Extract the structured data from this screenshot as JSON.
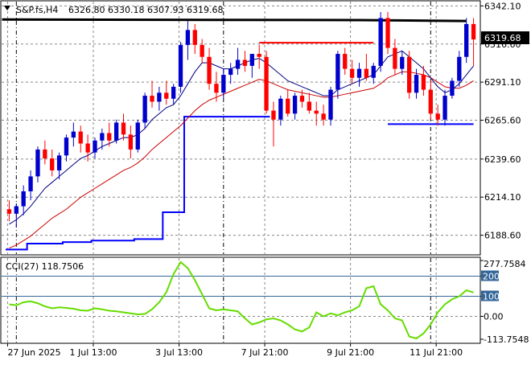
{
  "header": {
    "symbol": "S&P.fs,H4",
    "ohlc": "6326.80 6330.18 6307.93 6319.68"
  },
  "price_panel": {
    "current_price_label": "6319.68",
    "y_ticks": [
      "6342.10",
      "6316.60",
      "6291.10",
      "6265.60",
      "6239.60",
      "6214.10",
      "6188.60"
    ]
  },
  "indicator_panel": {
    "label": "CCI(27) 118.7506",
    "y_ticks": [
      "277.7584",
      "200",
      "100",
      "0.00",
      "-113.7548"
    ]
  },
  "x_axis": {
    "labels": [
      "27 Jun 2025",
      "1 Jul 13:00",
      "3 Jul 13:00",
      "7 Jul 21:00",
      "9 Jul 21:00",
      "11 Jul 21:00"
    ]
  },
  "colors": {
    "bull": "#0000cc",
    "bear": "#ff0000",
    "ma_fast": "#000080",
    "ma_slow": "#cc0000",
    "ma_long": "#000000",
    "stop_line": "#0000ff",
    "cci_line": "#66dd00",
    "cci_level": "#336699",
    "grid": "#888888",
    "current_tag_bg": "#000000"
  },
  "chart_data": [
    {
      "type": "candlestick",
      "title": "S&P.fs,H4",
      "ylim": [
        6176,
        6345
      ],
      "current_price": 6319.68,
      "candles": [
        [
          6206,
          6212,
          6198,
          6203
        ],
        [
          6203,
          6210,
          6194,
          6208
        ],
        [
          6208,
          6222,
          6202,
          6218
        ],
        [
          6218,
          6232,
          6212,
          6228
        ],
        [
          6228,
          6248,
          6224,
          6246
        ],
        [
          6246,
          6252,
          6236,
          6240
        ],
        [
          6240,
          6246,
          6228,
          6232
        ],
        [
          6232,
          6244,
          6226,
          6242
        ],
        [
          6242,
          6256,
          6238,
          6254
        ],
        [
          6254,
          6264,
          6248,
          6258
        ],
        [
          6258,
          6262,
          6244,
          6250
        ],
        [
          6250,
          6256,
          6238,
          6244
        ],
        [
          6244,
          6254,
          6240,
          6252
        ],
        [
          6252,
          6260,
          6246,
          6257
        ],
        [
          6257,
          6264,
          6248,
          6252
        ],
        [
          6252,
          6266,
          6250,
          6264
        ],
        [
          6264,
          6270,
          6252,
          6256
        ],
        [
          6256,
          6262,
          6240,
          6246
        ],
        [
          6246,
          6266,
          6244,
          6264
        ],
        [
          6264,
          6284,
          6260,
          6282
        ],
        [
          6282,
          6292,
          6274,
          6278
        ],
        [
          6278,
          6288,
          6272,
          6284
        ],
        [
          6284,
          6292,
          6276,
          6280
        ],
        [
          6280,
          6290,
          6276,
          6288
        ],
        [
          6288,
          6318,
          6284,
          6316
        ],
        [
          6316,
          6332,
          6306,
          6326
        ],
        [
          6326,
          6330,
          6310,
          6316
        ],
        [
          6316,
          6320,
          6304,
          6308
        ],
        [
          6308,
          6314,
          6286,
          6290
        ],
        [
          6290,
          6298,
          6278,
          6284
        ],
        [
          6284,
          6300,
          6280,
          6296
        ],
        [
          6296,
          6304,
          6290,
          6300
        ],
        [
          6300,
          6314,
          6296,
          6306
        ],
        [
          6306,
          6312,
          6298,
          6302
        ],
        [
          6302,
          6310,
          6294,
          6310
        ],
        [
          6310,
          6316,
          6300,
          6308
        ],
        [
          6308,
          6312,
          6270,
          6272
        ],
        [
          6272,
          6278,
          6248,
          6266
        ],
        [
          6266,
          6282,
          6262,
          6280
        ],
        [
          6280,
          6286,
          6268,
          6270
        ],
        [
          6270,
          6284,
          6266,
          6282
        ],
        [
          6282,
          6286,
          6274,
          6278
        ],
        [
          6278,
          6284,
          6270,
          6272
        ],
        [
          6272,
          6278,
          6262,
          6270
        ],
        [
          6270,
          6276,
          6262,
          6266
        ],
        [
          6266,
          6288,
          6262,
          6286
        ],
        [
          6286,
          6312,
          6280,
          6310
        ],
        [
          6310,
          6314,
          6296,
          6300
        ],
        [
          6300,
          6306,
          6290,
          6294
        ],
        [
          6294,
          6304,
          6288,
          6300
        ],
        [
          6300,
          6310,
          6292,
          6294
        ],
        [
          6294,
          6304,
          6290,
          6302
        ],
        [
          6302,
          6338,
          6298,
          6334
        ],
        [
          6334,
          6338,
          6310,
          6314
        ],
        [
          6314,
          6320,
          6296,
          6300
        ],
        [
          6300,
          6312,
          6296,
          6308
        ],
        [
          6308,
          6312,
          6280,
          6284
        ],
        [
          6284,
          6300,
          6280,
          6296
        ],
        [
          6296,
          6302,
          6282,
          6286
        ],
        [
          6286,
          6292,
          6266,
          6270
        ],
        [
          6270,
          6276,
          6262,
          6266
        ],
        [
          6266,
          6286,
          6262,
          6282
        ],
        [
          6282,
          6294,
          6280,
          6292
        ],
        [
          6292,
          6312,
          6288,
          6308
        ],
        [
          6308,
          6334,
          6304,
          6330
        ],
        [
          6330,
          6334,
          6302,
          6319.68
        ]
      ],
      "ma_fast": [
        6196,
        6199,
        6203,
        6208,
        6214,
        6220,
        6224,
        6228,
        6232,
        6236,
        6240,
        6242,
        6245,
        6248,
        6250,
        6252,
        6254,
        6254,
        6256,
        6260,
        6266,
        6270,
        6274,
        6276,
        6282,
        6290,
        6298,
        6304,
        6304,
        6302,
        6300,
        6300,
        6302,
        6304,
        6306,
        6307,
        6304,
        6300,
        6296,
        6292,
        6290,
        6288,
        6286,
        6284,
        6282,
        6282,
        6286,
        6288,
        6290,
        6292,
        6294,
        6296,
        6302,
        6308,
        6310,
        6312,
        6308,
        6304,
        6300,
        6294,
        6288,
        6284,
        6286,
        6290,
        6296,
        6302
      ],
      "ma_slow": [
        6180,
        6182,
        6185,
        6188,
        6192,
        6196,
        6200,
        6203,
        6206,
        6210,
        6214,
        6217,
        6220,
        6223,
        6226,
        6229,
        6232,
        6234,
        6237,
        6241,
        6246,
        6250,
        6254,
        6258,
        6262,
        6267,
        6272,
        6276,
        6279,
        6281,
        6283,
        6285,
        6287,
        6289,
        6291,
        6293,
        6292,
        6290,
        6288,
        6286,
        6285,
        6284,
        6283,
        6282,
        6281,
        6281,
        6282,
        6283,
        6284,
        6285,
        6286,
        6287,
        6290,
        6294,
        6296,
        6298,
        6298,
        6297,
        6296,
        6294,
        6291,
        6288,
        6287,
        6287,
        6289,
        6292
      ],
      "ma_long_line": [
        [
          0,
          6333
        ],
        [
          50,
          6332.6
        ],
        [
          65,
          6332
        ]
      ],
      "stop_line": [
        [
          0,
          6179
        ],
        [
          3,
          6183
        ],
        [
          8,
          6184
        ],
        [
          12,
          6185
        ],
        [
          18,
          6186
        ],
        [
          22,
          6204
        ],
        [
          25,
          6268
        ],
        [
          36,
          6268
        ],
        [
          37,
          6268
        ]
      ],
      "resistance_segment": [
        [
          35,
          6317.5
        ],
        [
          51,
          6317.5
        ]
      ],
      "support_segment": [
        [
          53,
          6263
        ],
        [
          65,
          6263
        ]
      ],
      "vertical_markers": [
        1,
        30,
        59
      ]
    },
    {
      "type": "line",
      "title": "CCI(27) 118.7506",
      "ylim": [
        -130,
        290
      ],
      "levels": [
        200,
        100,
        0
      ],
      "series": [
        {
          "values": [
            60,
            55,
            70,
            75,
            65,
            50,
            40,
            45,
            42,
            38,
            30,
            28,
            40,
            35,
            28,
            25,
            20,
            15,
            10,
            12,
            35,
            70,
            120,
            210,
            270,
            240,
            180,
            110,
            40,
            30,
            35,
            30,
            25,
            -10,
            -40,
            -30,
            -15,
            -10,
            -20,
            -40,
            -65,
            -75,
            -55,
            20,
            0,
            15,
            5,
            20,
            30,
            50,
            140,
            150,
            60,
            30,
            -10,
            -20,
            -100,
            -110,
            -85,
            -40,
            20,
            60,
            85,
            100,
            130,
            118.75
          ]
        }
      ]
    }
  ]
}
